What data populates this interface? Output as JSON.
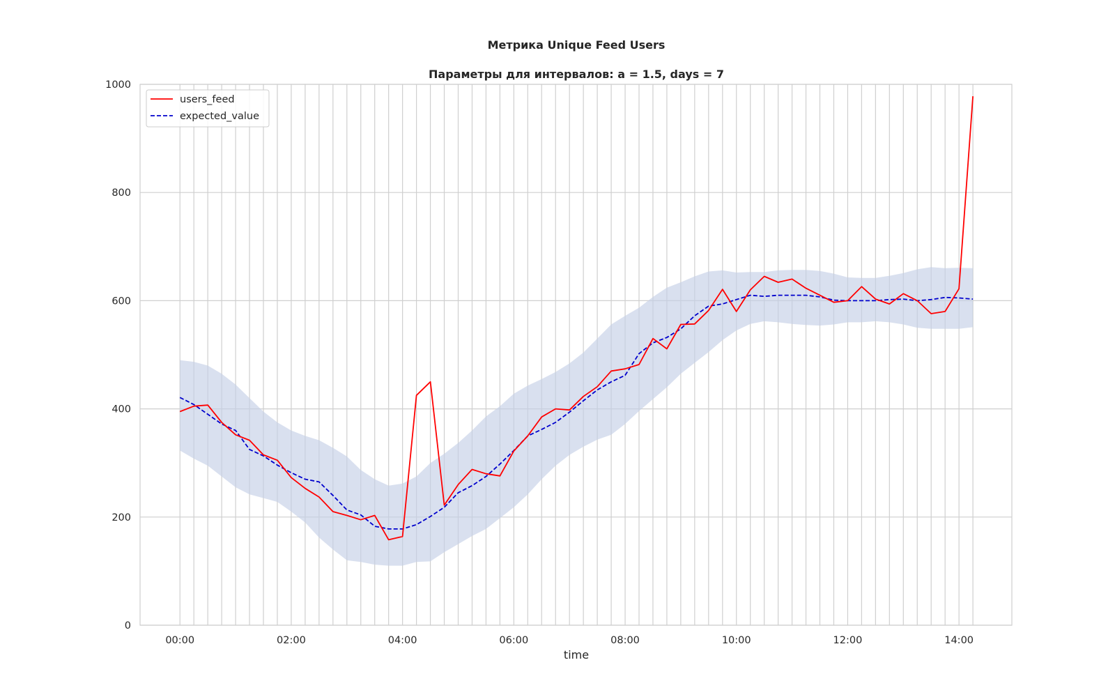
{
  "chart_data": {
    "type": "line",
    "title": "Метрика Unique Feed Users",
    "subtitle": "Параметры для интервалов: a = 1.5, days = 7",
    "xlabel": "time",
    "ylabel": "",
    "xlim": [
      "23:17",
      "14:57"
    ],
    "ylim": [
      0,
      1000
    ],
    "x_ticks": [
      "00:00",
      "02:00",
      "04:00",
      "06:00",
      "08:00",
      "10:00",
      "12:00",
      "14:00"
    ],
    "y_ticks": [
      0,
      200,
      400,
      600,
      800,
      1000
    ],
    "grid": true,
    "legend": "top-left",
    "x": [
      "00:00",
      "00:15",
      "00:30",
      "00:45",
      "01:00",
      "01:15",
      "01:30",
      "01:45",
      "02:00",
      "02:15",
      "02:30",
      "02:45",
      "03:00",
      "03:15",
      "03:30",
      "03:45",
      "04:00",
      "04:15",
      "04:30",
      "04:45",
      "05:00",
      "05:15",
      "05:30",
      "05:45",
      "06:00",
      "06:15",
      "06:30",
      "06:45",
      "07:00",
      "07:15",
      "07:30",
      "07:45",
      "08:00",
      "08:15",
      "08:30",
      "08:45",
      "09:00",
      "09:15",
      "09:30",
      "09:45",
      "10:00",
      "10:15",
      "10:30",
      "10:45",
      "11:00",
      "11:15",
      "11:30",
      "11:45",
      "12:00",
      "12:15",
      "12:30",
      "12:45",
      "13:00",
      "13:15",
      "13:30",
      "13:45",
      "14:00",
      "14:15"
    ],
    "series": [
      {
        "name": "users_feed",
        "color": "#ff0000",
        "style": "solid",
        "values": [
          395,
          405,
          407,
          375,
          352,
          342,
          315,
          305,
          273,
          253,
          237,
          210,
          203,
          195,
          203,
          158,
          164,
          425,
          450,
          222,
          260,
          288,
          280,
          276,
          322,
          350,
          385,
          400,
          398,
          423,
          441,
          470,
          474,
          482,
          530,
          511,
          556,
          557,
          582,
          621,
          580,
          620,
          645,
          634,
          640,
          623,
          610,
          597,
          600,
          626,
          603,
          594,
          613,
          600,
          576,
          580,
          622,
          978
        ]
      },
      {
        "name": "expected_value",
        "color": "#0000cc",
        "style": "dashed",
        "values": [
          421,
          408,
          390,
          372,
          360,
          325,
          313,
          296,
          282,
          270,
          265,
          240,
          213,
          204,
          183,
          178,
          178,
          186,
          201,
          218,
          245,
          258,
          275,
          298,
          323,
          350,
          362,
          375,
          394,
          415,
          435,
          450,
          462,
          502,
          522,
          532,
          548,
          572,
          590,
          594,
          602,
          610,
          608,
          610,
          610,
          610,
          607,
          601,
          600,
          600,
          600,
          602,
          603,
          600,
          602,
          606,
          605,
          603
        ]
      }
    ],
    "band": {
      "lower": [
        323,
        308,
        295,
        275,
        255,
        242,
        235,
        228,
        210,
        190,
        162,
        140,
        120,
        117,
        112,
        110,
        110,
        117,
        118,
        135,
        150,
        165,
        178,
        198,
        218,
        242,
        270,
        295,
        315,
        330,
        343,
        352,
        372,
        396,
        418,
        440,
        465,
        485,
        505,
        527,
        545,
        557,
        562,
        560,
        557,
        555,
        554,
        556,
        560,
        560,
        562,
        560,
        556,
        550,
        548,
        548,
        548,
        551
      ],
      "upper": [
        490,
        487,
        480,
        465,
        445,
        420,
        395,
        375,
        360,
        350,
        342,
        328,
        312,
        287,
        270,
        258,
        262,
        275,
        300,
        317,
        337,
        360,
        386,
        405,
        428,
        443,
        455,
        468,
        484,
        504,
        530,
        556,
        572,
        587,
        607,
        624,
        634,
        645,
        654,
        656,
        652,
        653,
        653,
        656,
        657,
        657,
        655,
        650,
        643,
        642,
        642,
        646,
        651,
        658,
        662,
        660,
        661,
        660
      ],
      "color": "#c5cfe6"
    }
  }
}
